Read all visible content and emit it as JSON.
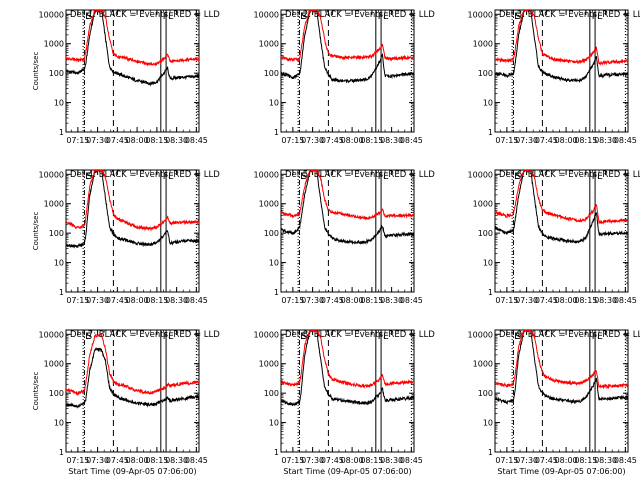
{
  "figure": {
    "xlabel": "Start Time (09-Apr-05 07:06:00)",
    "ylabel": "Counts/sec",
    "x_tick_labels": [
      "07:15",
      "07:30",
      "07:45",
      "08:00",
      "08:15",
      "08:30",
      "08:45"
    ],
    "y_tick_labels": [
      "1",
      "10",
      "100",
      "1000",
      "10000"
    ],
    "colors": {
      "events": "#000000",
      "lld": "#ff0000",
      "axes": "#000000"
    },
    "marker_labels": [
      "E",
      "S",
      "F",
      "E"
    ]
  },
  "chart_data": [
    {
      "type": "line",
      "title": "Det 1: BLACK = Events, RED = LLD",
      "x_range": [
        "07:06:00",
        "08:47:00"
      ],
      "ylim": [
        1,
        14000
      ],
      "y_scale": "log",
      "x": [
        "07:06",
        "07:15",
        "07:20",
        "07:21",
        "07:24",
        "07:28",
        "07:33",
        "07:36",
        "07:39",
        "07:42",
        "07:45",
        "07:50",
        "08:00",
        "08:10",
        "08:15",
        "08:21",
        "08:23",
        "08:25",
        "08:30",
        "08:40",
        "08:47"
      ],
      "series": [
        {
          "name": "BLACK = Events",
          "values": [
            120,
            100,
            140,
            200,
            2000,
            13000,
            14000,
            1500,
            170,
            110,
            100,
            80,
            55,
            45,
            50,
            110,
            150,
            65,
            70,
            75,
            80
          ]
        },
        {
          "name": "RED = LLD",
          "values": [
            320,
            280,
            300,
            500,
            4000,
            14000,
            14000,
            8000,
            1500,
            450,
            360,
            330,
            250,
            200,
            210,
            320,
            450,
            250,
            270,
            290,
            300
          ]
        }
      ],
      "markers": [
        {
          "time": "07:19",
          "style": "dotted",
          "label": "E"
        },
        {
          "time": "07:20",
          "style": "dash-dot",
          "label": "S"
        },
        {
          "time": "07:42",
          "style": "dashed",
          "label": ""
        },
        {
          "time": "08:18",
          "style": "solid",
          "label": "F"
        },
        {
          "time": "08:22",
          "style": "solid",
          "label": "E"
        },
        {
          "time": "08:45",
          "style": "dotted",
          "label": ""
        }
      ]
    },
    {
      "type": "line",
      "title": "Det 2: BLACK = Events, RED = LLD",
      "x_range": [
        "07:06:00",
        "08:47:00"
      ],
      "ylim": [
        1,
        14000
      ],
      "y_scale": "log",
      "x": [
        "07:06",
        "07:15",
        "07:20",
        "07:21",
        "07:24",
        "07:28",
        "07:33",
        "07:36",
        "07:39",
        "07:42",
        "07:45",
        "07:50",
        "08:00",
        "08:10",
        "08:15",
        "08:21",
        "08:23",
        "08:25",
        "08:30",
        "08:40",
        "08:47"
      ],
      "series": [
        {
          "name": "BLACK = Events",
          "values": [
            100,
            70,
            90,
            150,
            2000,
            13000,
            14000,
            1500,
            170,
            90,
            60,
            55,
            55,
            60,
            80,
            250,
            400,
            80,
            80,
            90,
            95
          ]
        },
        {
          "name": "RED = LLD",
          "values": [
            330,
            280,
            300,
            500,
            4000,
            14000,
            14000,
            8000,
            1500,
            450,
            380,
            350,
            330,
            350,
            380,
            650,
            900,
            320,
            310,
            330,
            340
          ]
        }
      ],
      "markers": [
        {
          "time": "07:19",
          "style": "dotted",
          "label": "E"
        },
        {
          "time": "07:20",
          "style": "dash-dot",
          "label": "S"
        },
        {
          "time": "07:42",
          "style": "dashed",
          "label": ""
        },
        {
          "time": "08:18",
          "style": "solid",
          "label": "F"
        },
        {
          "time": "08:22",
          "style": "solid",
          "label": "E"
        },
        {
          "time": "08:45",
          "style": "dotted",
          "label": ""
        }
      ]
    },
    {
      "type": "line",
      "title": "Det 3: BLACK = Events, RED = LLD",
      "x_range": [
        "07:06:00",
        "08:47:00"
      ],
      "ylim": [
        1,
        14000
      ],
      "y_scale": "log",
      "x": [
        "07:06",
        "07:15",
        "07:20",
        "07:21",
        "07:24",
        "07:28",
        "07:33",
        "07:36",
        "07:39",
        "07:42",
        "07:45",
        "07:50",
        "08:00",
        "08:10",
        "08:15",
        "08:21",
        "08:23",
        "08:25",
        "08:30",
        "08:40",
        "08:47"
      ],
      "series": [
        {
          "name": "BLACK = Events",
          "values": [
            100,
            80,
            100,
            160,
            2000,
            13000,
            14000,
            1500,
            170,
            110,
            90,
            75,
            60,
            55,
            75,
            220,
            350,
            80,
            85,
            90,
            95
          ]
        },
        {
          "name": "RED = LLD",
          "values": [
            300,
            260,
            300,
            500,
            4000,
            14000,
            14000,
            8000,
            1500,
            450,
            400,
            300,
            260,
            240,
            280,
            500,
            750,
            220,
            230,
            240,
            250
          ]
        }
      ],
      "markers": [
        {
          "time": "07:19",
          "style": "dotted",
          "label": "E"
        },
        {
          "time": "07:20",
          "style": "dash-dot",
          "label": "S"
        },
        {
          "time": "07:42",
          "style": "dashed",
          "label": ""
        },
        {
          "time": "08:18",
          "style": "solid",
          "label": "F"
        },
        {
          "time": "08:22",
          "style": "solid",
          "label": "E"
        },
        {
          "time": "08:45",
          "style": "dotted",
          "label": ""
        }
      ]
    },
    {
      "type": "line",
      "title": "Det 4: BLACK = Events, RED = LLD",
      "x_range": [
        "07:06:00",
        "08:47:00"
      ],
      "ylim": [
        1,
        14000
      ],
      "y_scale": "log",
      "x": [
        "07:06",
        "07:15",
        "07:20",
        "07:21",
        "07:24",
        "07:28",
        "07:33",
        "07:36",
        "07:39",
        "07:42",
        "07:45",
        "07:50",
        "08:00",
        "08:10",
        "08:15",
        "08:21",
        "08:23",
        "08:25",
        "08:30",
        "08:40",
        "08:47"
      ],
      "series": [
        {
          "name": "BLACK = Events",
          "values": [
            40,
            35,
            45,
            80,
            2000,
            13000,
            14000,
            1500,
            170,
            90,
            70,
            60,
            45,
            40,
            50,
            90,
            120,
            45,
            50,
            55,
            55
          ]
        },
        {
          "name": "RED = LLD",
          "values": [
            250,
            150,
            180,
            300,
            4000,
            14000,
            14000,
            8000,
            1500,
            450,
            300,
            250,
            160,
            140,
            160,
            250,
            350,
            220,
            230,
            240,
            250
          ]
        }
      ],
      "markers": [
        {
          "time": "07:19",
          "style": "dotted",
          "label": "E"
        },
        {
          "time": "07:20",
          "style": "dash-dot",
          "label": "S"
        },
        {
          "time": "07:42",
          "style": "dashed",
          "label": ""
        },
        {
          "time": "08:18",
          "style": "solid",
          "label": "F"
        },
        {
          "time": "08:22",
          "style": "solid",
          "label": "E"
        },
        {
          "time": "08:45",
          "style": "dotted",
          "label": ""
        }
      ]
    },
    {
      "type": "line",
      "title": "Det 5: BLACK = Events, RED = LLD",
      "x_range": [
        "07:06:00",
        "08:47:00"
      ],
      "ylim": [
        1,
        14000
      ],
      "y_scale": "log",
      "x": [
        "07:06",
        "07:15",
        "07:20",
        "07:21",
        "07:24",
        "07:28",
        "07:33",
        "07:36",
        "07:39",
        "07:42",
        "07:45",
        "07:50",
        "08:00",
        "08:10",
        "08:15",
        "08:21",
        "08:23",
        "08:25",
        "08:30",
        "08:40",
        "08:47"
      ],
      "series": [
        {
          "name": "BLACK = Events",
          "values": [
            130,
            100,
            150,
            250,
            2000,
            13000,
            14000,
            1500,
            170,
            90,
            65,
            55,
            50,
            50,
            60,
            120,
            180,
            80,
            85,
            90,
            95
          ]
        },
        {
          "name": "RED = LLD",
          "values": [
            500,
            380,
            450,
            700,
            4000,
            14000,
            14000,
            8000,
            1500,
            600,
            500,
            480,
            380,
            320,
            350,
            500,
            650,
            380,
            390,
            400,
            410
          ]
        }
      ],
      "markers": [
        {
          "time": "07:19",
          "style": "dotted",
          "label": "E"
        },
        {
          "time": "07:20",
          "style": "dash-dot",
          "label": "S"
        },
        {
          "time": "07:42",
          "style": "dashed",
          "label": ""
        },
        {
          "time": "08:18",
          "style": "solid",
          "label": "F"
        },
        {
          "time": "08:22",
          "style": "solid",
          "label": "E"
        },
        {
          "time": "08:45",
          "style": "dotted",
          "label": ""
        }
      ]
    },
    {
      "type": "line",
      "title": "Det 6: BLACK = Events, RED = LLD",
      "x_range": [
        "07:06:00",
        "08:47:00"
      ],
      "ylim": [
        1,
        14000
      ],
      "y_scale": "log",
      "x": [
        "07:06",
        "07:15",
        "07:20",
        "07:21",
        "07:24",
        "07:28",
        "07:33",
        "07:36",
        "07:39",
        "07:42",
        "07:45",
        "07:50",
        "08:00",
        "08:10",
        "08:15",
        "08:21",
        "08:23",
        "08:25",
        "08:30",
        "08:40",
        "08:47"
      ],
      "series": [
        {
          "name": "BLACK = Events",
          "values": [
            150,
            100,
            130,
            220,
            2000,
            13000,
            14000,
            1500,
            170,
            95,
            75,
            65,
            55,
            50,
            70,
            300,
            500,
            90,
            95,
            100,
            100
          ]
        },
        {
          "name": "RED = LLD",
          "values": [
            500,
            380,
            450,
            700,
            4000,
            14000,
            14000,
            8000,
            1500,
            600,
            500,
            420,
            320,
            260,
            300,
            600,
            900,
            240,
            250,
            260,
            270
          ]
        }
      ],
      "markers": [
        {
          "time": "07:19",
          "style": "dotted",
          "label": "E"
        },
        {
          "time": "07:20",
          "style": "dash-dot",
          "label": "S"
        },
        {
          "time": "07:42",
          "style": "dashed",
          "label": ""
        },
        {
          "time": "08:18",
          "style": "solid",
          "label": "F"
        },
        {
          "time": "08:22",
          "style": "solid",
          "label": "E"
        },
        {
          "time": "08:45",
          "style": "dotted",
          "label": ""
        }
      ]
    },
    {
      "type": "line",
      "title": "Det 7: BLACK = Events, RED = LLD",
      "x_range": [
        "07:06:00",
        "08:47:00"
      ],
      "ylim": [
        1,
        14000
      ],
      "y_scale": "log",
      "x": [
        "07:06",
        "07:15",
        "07:20",
        "07:21",
        "07:24",
        "07:28",
        "07:33",
        "07:36",
        "07:39",
        "07:42",
        "07:45",
        "07:50",
        "08:00",
        "08:10",
        "08:15",
        "08:21",
        "08:23",
        "08:25",
        "08:30",
        "08:40",
        "08:47"
      ],
      "series": [
        {
          "name": "BLACK = Events",
          "values": [
            40,
            35,
            45,
            60,
            600,
            3000,
            3000,
            1200,
            160,
            90,
            75,
            60,
            45,
            40,
            45,
            60,
            70,
            55,
            60,
            70,
            75
          ]
        },
        {
          "name": "RED = LLD",
          "values": [
            130,
            100,
            120,
            200,
            2000,
            9000,
            10000,
            3000,
            500,
            250,
            200,
            180,
            120,
            100,
            120,
            150,
            200,
            180,
            200,
            220,
            240
          ]
        }
      ],
      "markers": [
        {
          "time": "07:19",
          "style": "dotted",
          "label": "E"
        },
        {
          "time": "07:20",
          "style": "dash-dot",
          "label": "S"
        },
        {
          "time": "07:42",
          "style": "dashed",
          "label": ""
        },
        {
          "time": "08:18",
          "style": "solid",
          "label": "F"
        },
        {
          "time": "08:22",
          "style": "solid",
          "label": "E"
        },
        {
          "time": "08:45",
          "style": "dotted",
          "label": ""
        }
      ]
    },
    {
      "type": "line",
      "title": "Det 8: BLACK = Events, RED = LLD",
      "x_range": [
        "07:06:00",
        "08:47:00"
      ],
      "ylim": [
        1,
        14000
      ],
      "y_scale": "log",
      "x": [
        "07:06",
        "07:15",
        "07:20",
        "07:21",
        "07:24",
        "07:28",
        "07:33",
        "07:36",
        "07:39",
        "07:42",
        "07:45",
        "07:50",
        "08:00",
        "08:10",
        "08:15",
        "08:21",
        "08:23",
        "08:25",
        "08:30",
        "08:40",
        "08:47"
      ],
      "series": [
        {
          "name": "BLACK = Events",
          "values": [
            55,
            40,
            50,
            80,
            2000,
            13000,
            14000,
            1500,
            170,
            90,
            65,
            60,
            50,
            45,
            50,
            100,
            140,
            55,
            60,
            65,
            70
          ]
        },
        {
          "name": "RED = LLD",
          "values": [
            250,
            190,
            220,
            350,
            4000,
            14000,
            14000,
            8000,
            1500,
            450,
            300,
            250,
            200,
            170,
            190,
            300,
            420,
            210,
            220,
            230,
            240
          ]
        }
      ],
      "markers": [
        {
          "time": "07:19",
          "style": "dotted",
          "label": "E"
        },
        {
          "time": "07:20",
          "style": "dash-dot",
          "label": "S"
        },
        {
          "time": "07:42",
          "style": "dashed",
          "label": ""
        },
        {
          "time": "08:18",
          "style": "solid",
          "label": "F"
        },
        {
          "time": "08:22",
          "style": "solid",
          "label": "E"
        },
        {
          "time": "08:45",
          "style": "dotted",
          "label": ""
        }
      ]
    },
    {
      "type": "line",
      "title": "Det 9: BLACK = Events, RED = LLD",
      "x_range": [
        "07:06:00",
        "08:47:00"
      ],
      "ylim": [
        1,
        14000
      ],
      "y_scale": "log",
      "x": [
        "07:06",
        "07:15",
        "07:20",
        "07:21",
        "07:24",
        "07:28",
        "07:33",
        "07:36",
        "07:39",
        "07:42",
        "07:45",
        "07:50",
        "08:00",
        "08:10",
        "08:15",
        "08:21",
        "08:23",
        "08:25",
        "08:30",
        "08:40",
        "08:47"
      ],
      "series": [
        {
          "name": "BLACK = Events",
          "values": [
            65,
            50,
            60,
            100,
            2000,
            13000,
            14000,
            1500,
            170,
            100,
            80,
            65,
            55,
            50,
            70,
            200,
            320,
            60,
            65,
            70,
            70
          ]
        },
        {
          "name": "RED = LLD",
          "values": [
            230,
            180,
            200,
            320,
            4000,
            14000,
            14000,
            8000,
            1500,
            500,
            350,
            280,
            230,
            220,
            260,
            450,
            600,
            160,
            170,
            180,
            190
          ]
        }
      ],
      "markers": [
        {
          "time": "07:19",
          "style": "dotted",
          "label": "E"
        },
        {
          "time": "07:20",
          "style": "dash-dot",
          "label": "S"
        },
        {
          "time": "07:42",
          "style": "dashed",
          "label": ""
        },
        {
          "time": "08:18",
          "style": "solid",
          "label": "F"
        },
        {
          "time": "08:22",
          "style": "solid",
          "label": "E"
        },
        {
          "time": "08:45",
          "style": "dotted",
          "label": ""
        }
      ]
    }
  ]
}
